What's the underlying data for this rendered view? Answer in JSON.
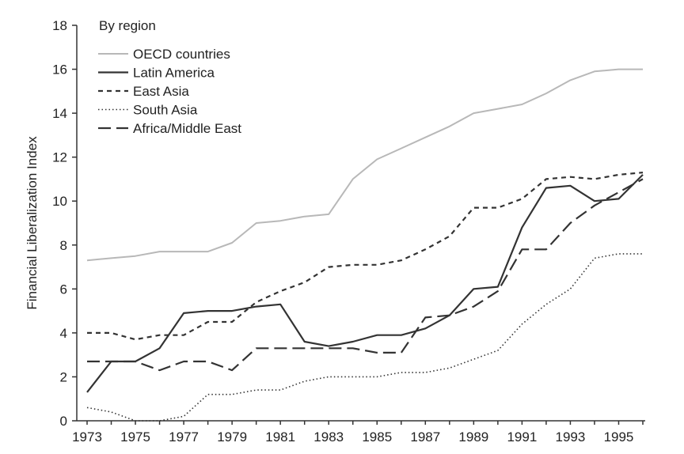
{
  "chart_data": {
    "type": "line",
    "title": "",
    "xlabel": "",
    "ylabel": "Financial Liberalization Index",
    "legend_title": "By region",
    "legend_position": "top-left",
    "grid": false,
    "xlim": [
      1973,
      1996
    ],
    "ylim": [
      0,
      18
    ],
    "x_ticks": [
      1973,
      1975,
      1977,
      1979,
      1981,
      1983,
      1985,
      1987,
      1989,
      1991,
      1993,
      1995
    ],
    "y_ticks": [
      0,
      2,
      4,
      6,
      8,
      10,
      12,
      14,
      16,
      18
    ],
    "x": [
      1973,
      1974,
      1975,
      1976,
      1977,
      1978,
      1979,
      1980,
      1981,
      1982,
      1983,
      1984,
      1985,
      1986,
      1987,
      1988,
      1989,
      1990,
      1991,
      1992,
      1993,
      1994,
      1995,
      1996
    ],
    "series": [
      {
        "name": "OECD countries",
        "style": "solid-light",
        "color": "#b8b8b8",
        "values": [
          7.3,
          7.4,
          7.5,
          7.7,
          7.7,
          7.7,
          8.1,
          9.0,
          9.1,
          9.3,
          9.4,
          11.0,
          11.9,
          12.4,
          12.9,
          13.4,
          14.0,
          14.2,
          14.4,
          14.9,
          15.5,
          15.9,
          16.0,
          16.0
        ]
      },
      {
        "name": "Latin America",
        "style": "solid",
        "color": "#333333",
        "values": [
          1.3,
          2.7,
          2.7,
          3.3,
          4.9,
          5.0,
          5.0,
          5.2,
          5.3,
          3.6,
          3.4,
          3.6,
          3.9,
          3.9,
          4.2,
          4.8,
          6.0,
          6.1,
          8.8,
          10.6,
          10.7,
          10.0,
          10.1,
          11.2
        ]
      },
      {
        "name": "East Asia",
        "style": "short-dash",
        "color": "#333333",
        "values": [
          4.0,
          4.0,
          3.7,
          3.9,
          3.9,
          4.5,
          4.5,
          5.4,
          5.9,
          6.3,
          7.0,
          7.1,
          7.1,
          7.3,
          7.8,
          8.4,
          9.7,
          9.7,
          10.1,
          11.0,
          11.1,
          11.0,
          11.2,
          11.3
        ]
      },
      {
        "name": "South Asia",
        "style": "dotted",
        "color": "#333333",
        "values": [
          0.6,
          0.4,
          0.0,
          0.0,
          0.2,
          1.2,
          1.2,
          1.4,
          1.4,
          1.8,
          2.0,
          2.0,
          2.0,
          2.2,
          2.2,
          2.4,
          2.8,
          3.2,
          4.4,
          5.3,
          6.0,
          7.4,
          7.6,
          7.6
        ]
      },
      {
        "name": "Africa/Middle East",
        "style": "long-dash",
        "color": "#333333",
        "values": [
          2.7,
          2.7,
          2.7,
          2.3,
          2.7,
          2.7,
          2.3,
          3.3,
          3.3,
          3.3,
          3.3,
          3.3,
          3.1,
          3.1,
          4.7,
          4.8,
          5.2,
          5.9,
          7.8,
          7.8,
          9.0,
          9.8,
          10.4,
          11.0
        ]
      }
    ]
  }
}
